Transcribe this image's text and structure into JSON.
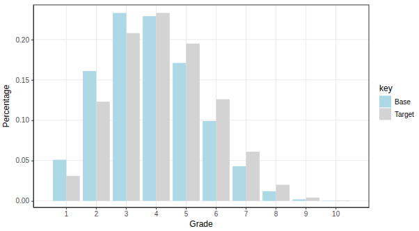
{
  "chart_data": {
    "type": "bar",
    "x_label": "Grade",
    "y_label": "Percentage",
    "legend_title": "key",
    "legend": "right",
    "grid": true,
    "categories": [
      "1",
      "2",
      "3",
      "4",
      "5",
      "6",
      "7",
      "8",
      "9",
      "10"
    ],
    "series": [
      {
        "name": "Base",
        "color": "#ADD8E6",
        "values": [
          0.051,
          0.161,
          0.233,
          0.229,
          0.171,
          0.099,
          0.043,
          0.012,
          0.002,
          0.0003
        ]
      },
      {
        "name": "Target",
        "color": "#D3D3D3",
        "values": [
          0.031,
          0.123,
          0.208,
          0.233,
          0.195,
          0.126,
          0.061,
          0.02,
          0.004,
          0.0005
        ]
      }
    ],
    "ylim": [
      -0.008,
      0.243
    ],
    "yticks": [
      {
        "value": 0,
        "label": "0.00"
      },
      {
        "value": 0.05,
        "label": "0.05"
      },
      {
        "value": 0.1,
        "label": "0.10"
      },
      {
        "value": 0.15,
        "label": "0.15"
      },
      {
        "value": 0.2,
        "label": "0.20"
      }
    ]
  }
}
